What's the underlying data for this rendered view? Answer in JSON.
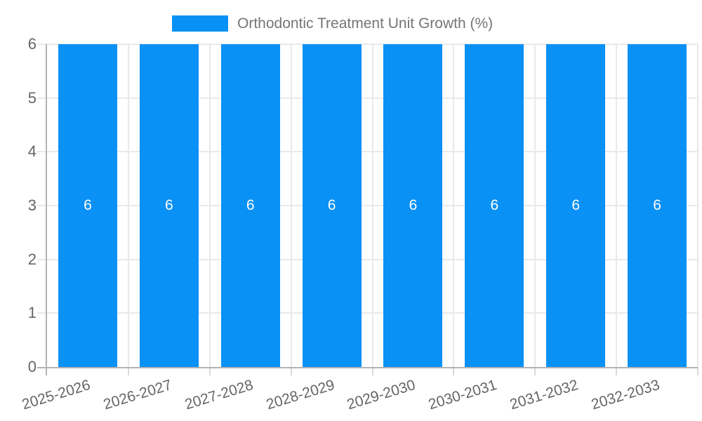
{
  "chart_data": {
    "type": "bar",
    "title": "Orthodontic Treatment Unit Growth (%)",
    "categories": [
      "2025-2026",
      "2026-2027",
      "2027-2028",
      "2028-2029",
      "2029-2030",
      "2030-2031",
      "2031-2032",
      "2032-2033"
    ],
    "values": [
      6,
      6,
      6,
      6,
      6,
      6,
      6,
      6
    ],
    "bar_labels": [
      "6",
      "6",
      "6",
      "6",
      "6",
      "6",
      "6",
      "6"
    ],
    "xlabel": "",
    "ylabel": "",
    "ylim": [
      0,
      6
    ],
    "yticks": [
      0,
      1,
      2,
      3,
      4,
      5,
      6
    ],
    "grid": true,
    "legend_position": "top-center"
  },
  "colors": {
    "bar": "#0a91f5",
    "grid": "#e9e9e9",
    "axis": "#b3b3b3",
    "bottom_tick": "#d9d9d9",
    "title_text": "#757575",
    "axis_text": "#666666",
    "value_text": "#ffffff",
    "background": "#ffffff"
  }
}
